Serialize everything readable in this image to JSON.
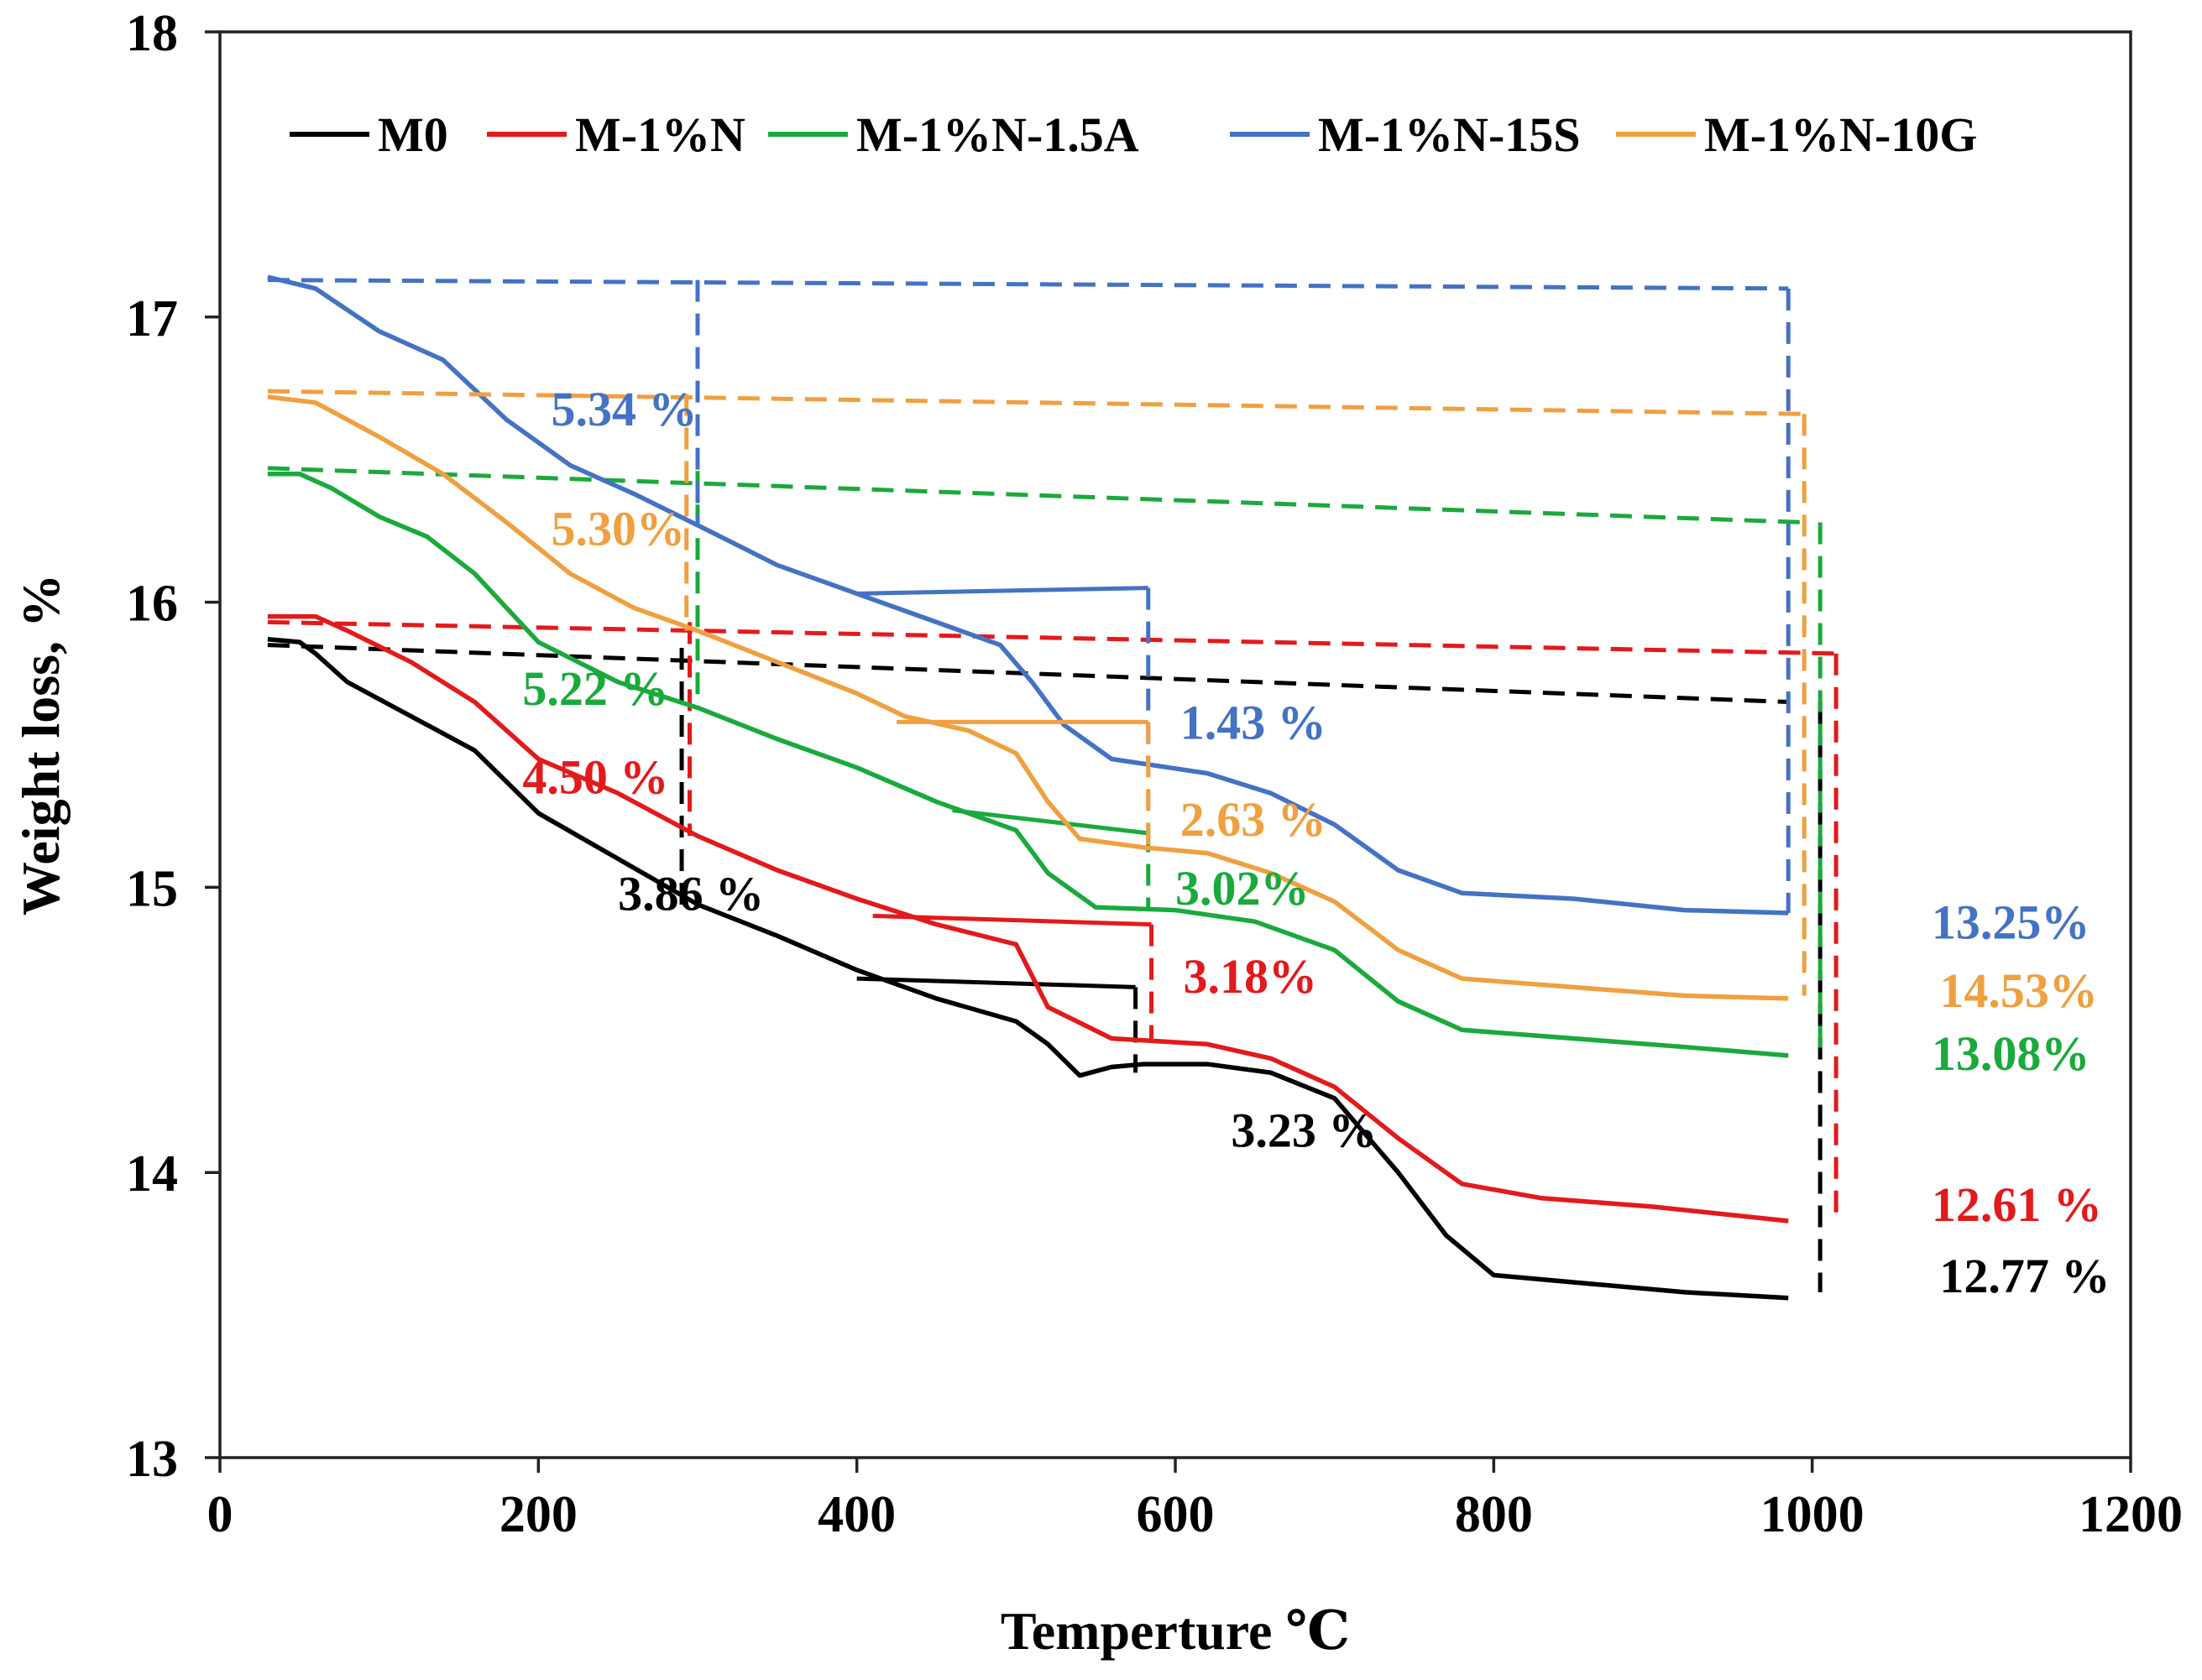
{
  "chart_data": {
    "type": "line",
    "title": "",
    "xlabel": "Temperture ℃",
    "ylabel": "Weight loss, %",
    "xlim": [
      0,
      1200
    ],
    "ylim": [
      13,
      18
    ],
    "xticks": [
      0,
      200,
      400,
      600,
      800,
      1000,
      1200
    ],
    "yticks": [
      13,
      14,
      15,
      16,
      17,
      18
    ],
    "grid": false,
    "legend_position": "top",
    "series": [
      {
        "name": "M0",
        "color": "#000000",
        "points": [
          [
            30,
            15.87
          ],
          [
            50,
            15.86
          ],
          [
            60,
            15.82
          ],
          [
            80,
            15.72
          ],
          [
            120,
            15.6
          ],
          [
            160,
            15.48
          ],
          [
            200,
            15.26
          ],
          [
            250,
            15.1
          ],
          [
            300,
            14.94
          ],
          [
            350,
            14.83
          ],
          [
            400,
            14.71
          ],
          [
            450,
            14.61
          ],
          [
            500,
            14.53
          ],
          [
            520,
            14.45
          ],
          [
            540,
            14.34
          ],
          [
            560,
            14.37
          ],
          [
            580,
            14.38
          ],
          [
            620,
            14.38
          ],
          [
            660,
            14.35
          ],
          [
            700,
            14.26
          ],
          [
            740,
            14.0
          ],
          [
            770,
            13.78
          ],
          [
            800,
            13.64
          ],
          [
            860,
            13.61
          ],
          [
            920,
            13.58
          ],
          [
            985,
            13.56
          ]
        ],
        "annotations": [
          {
            "text": "3.86 %",
            "x": 250,
            "y": 14.92
          },
          {
            "text": "3.23 %",
            "x": 635,
            "y": 14.09
          },
          {
            "text": "12.77 %",
            "x": 1080,
            "y": 13.58
          }
        ],
        "reference_segments": [
          [
            [
              30,
              15.85
            ],
            [
              985,
              15.65
            ]
          ],
          [
            [
              290,
              15.84
            ],
            [
              290,
              14.93
            ]
          ],
          [
            [
              575,
              14.65
            ],
            [
              575,
              14.35
            ]
          ],
          [
            [
              1005,
              15.65
            ],
            [
              1005,
              13.58
            ]
          ]
        ],
        "step_segments": [
          [
            [
              400,
              14.68
            ],
            [
              575,
              14.65
            ]
          ]
        ]
      },
      {
        "name": "M-1%N",
        "color": "#e31a1c",
        "points": [
          [
            30,
            15.95
          ],
          [
            60,
            15.95
          ],
          [
            80,
            15.9
          ],
          [
            120,
            15.79
          ],
          [
            160,
            15.65
          ],
          [
            200,
            15.45
          ],
          [
            250,
            15.33
          ],
          [
            300,
            15.18
          ],
          [
            350,
            15.06
          ],
          [
            400,
            14.96
          ],
          [
            450,
            14.87
          ],
          [
            500,
            14.8
          ],
          [
            520,
            14.58
          ],
          [
            560,
            14.47
          ],
          [
            620,
            14.45
          ],
          [
            660,
            14.4
          ],
          [
            700,
            14.3
          ],
          [
            740,
            14.12
          ],
          [
            780,
            13.96
          ],
          [
            830,
            13.91
          ],
          [
            900,
            13.88
          ],
          [
            985,
            13.83
          ]
        ],
        "annotations": [
          {
            "text": "4.50 %",
            "x": 190,
            "y": 15.33
          },
          {
            "text": "3.18%",
            "x": 605,
            "y": 14.63
          },
          {
            "text": "12.61 %",
            "x": 1075,
            "y": 13.83
          }
        ],
        "reference_segments": [
          [
            [
              30,
              15.93
            ],
            [
              1015,
              15.82
            ]
          ],
          [
            [
              295,
              15.93
            ],
            [
              295,
              15.18
            ]
          ],
          [
            [
              585,
              14.87
            ],
            [
              585,
              14.47
            ]
          ],
          [
            [
              1015,
              15.82
            ],
            [
              1015,
              13.85
            ]
          ]
        ],
        "step_segments": [
          [
            [
              410,
              14.9
            ],
            [
              585,
              14.87
            ]
          ]
        ]
      },
      {
        "name": "M-1%N-1.5A",
        "color": "#1aaa3c",
        "points": [
          [
            30,
            16.45
          ],
          [
            50,
            16.45
          ],
          [
            70,
            16.4
          ],
          [
            100,
            16.3
          ],
          [
            130,
            16.23
          ],
          [
            160,
            16.1
          ],
          [
            200,
            15.86
          ],
          [
            250,
            15.72
          ],
          [
            300,
            15.63
          ],
          [
            350,
            15.52
          ],
          [
            400,
            15.42
          ],
          [
            450,
            15.3
          ],
          [
            500,
            15.2
          ],
          [
            520,
            15.05
          ],
          [
            550,
            14.93
          ],
          [
            600,
            14.92
          ],
          [
            650,
            14.88
          ],
          [
            700,
            14.78
          ],
          [
            740,
            14.6
          ],
          [
            780,
            14.5
          ],
          [
            850,
            14.47
          ],
          [
            920,
            14.44
          ],
          [
            985,
            14.41
          ]
        ],
        "annotations": [
          {
            "text": "5.22 %",
            "x": 190,
            "y": 15.64
          },
          {
            "text": "3.02%",
            "x": 600,
            "y": 14.94
          },
          {
            "text": "13.08%",
            "x": 1075,
            "y": 14.36
          }
        ],
        "reference_segments": [
          [
            [
              30,
              16.47
            ],
            [
              995,
              16.28
            ]
          ],
          [
            [
              300,
              16.46
            ],
            [
              300,
              15.63
            ]
          ],
          [
            [
              583,
              15.2
            ],
            [
              583,
              14.92
            ]
          ],
          [
            [
              1005,
              16.28
            ],
            [
              1005,
              14.42
            ]
          ]
        ],
        "step_segments": [
          [
            [
              460,
              15.27
            ],
            [
              583,
              15.19
            ]
          ]
        ]
      },
      {
        "name": "M-1%N-15S",
        "color": "#4472c4",
        "points": [
          [
            30,
            17.14
          ],
          [
            60,
            17.1
          ],
          [
            100,
            16.95
          ],
          [
            140,
            16.85
          ],
          [
            180,
            16.64
          ],
          [
            220,
            16.48
          ],
          [
            260,
            16.38
          ],
          [
            300,
            16.27
          ],
          [
            350,
            16.13
          ],
          [
            400,
            16.03
          ],
          [
            450,
            15.93
          ],
          [
            490,
            15.85
          ],
          [
            510,
            15.72
          ],
          [
            530,
            15.57
          ],
          [
            560,
            15.45
          ],
          [
            620,
            15.4
          ],
          [
            660,
            15.33
          ],
          [
            700,
            15.22
          ],
          [
            740,
            15.06
          ],
          [
            780,
            14.98
          ],
          [
            850,
            14.96
          ],
          [
            920,
            14.92
          ],
          [
            985,
            14.91
          ]
        ],
        "annotations": [
          {
            "text": "5.34 %",
            "x": 208,
            "y": 16.62
          },
          {
            "text": "1.43 %",
            "x": 603,
            "y": 15.52
          },
          {
            "text": "13.25%",
            "x": 1075,
            "y": 14.82
          }
        ],
        "reference_segments": [
          [
            [
              30,
              17.13
            ],
            [
              985,
              17.1
            ]
          ],
          [
            [
              300,
              17.13
            ],
            [
              300,
              16.27
            ]
          ],
          [
            [
              583,
              16.05
            ],
            [
              583,
              15.42
            ]
          ],
          [
            [
              985,
              17.1
            ],
            [
              985,
              14.91
            ]
          ]
        ],
        "step_segments": [
          [
            [
              400,
              16.03
            ],
            [
              583,
              16.05
            ]
          ]
        ]
      },
      {
        "name": "M-1%N-10G",
        "color": "#f0a040",
        "points": [
          [
            30,
            16.72
          ],
          [
            60,
            16.7
          ],
          [
            100,
            16.58
          ],
          [
            140,
            16.45
          ],
          [
            180,
            16.28
          ],
          [
            220,
            16.1
          ],
          [
            260,
            15.98
          ],
          [
            300,
            15.9
          ],
          [
            350,
            15.79
          ],
          [
            400,
            15.68
          ],
          [
            430,
            15.6
          ],
          [
            470,
            15.55
          ],
          [
            500,
            15.47
          ],
          [
            520,
            15.3
          ],
          [
            540,
            15.17
          ],
          [
            580,
            15.14
          ],
          [
            620,
            15.12
          ],
          [
            660,
            15.05
          ],
          [
            700,
            14.95
          ],
          [
            740,
            14.78
          ],
          [
            780,
            14.68
          ],
          [
            850,
            14.65
          ],
          [
            920,
            14.62
          ],
          [
            985,
            14.61
          ]
        ],
        "annotations": [
          {
            "text": "5.30%",
            "x": 208,
            "y": 16.2
          },
          {
            "text": "2.63 %",
            "x": 603,
            "y": 15.18
          },
          {
            "text": "14.53%",
            "x": 1080,
            "y": 14.58
          }
        ],
        "reference_segments": [
          [
            [
              30,
              16.74
            ],
            [
              995,
              16.66
            ]
          ],
          [
            [
              293,
              16.73
            ],
            [
              293,
              15.9
            ]
          ],
          [
            [
              583,
              15.58
            ],
            [
              583,
              15.15
            ]
          ],
          [
            [
              995,
              16.66
            ],
            [
              995,
              14.62
            ]
          ]
        ],
        "step_segments": [
          [
            [
              425,
              15.58
            ],
            [
              583,
              15.58
            ]
          ]
        ]
      }
    ]
  }
}
